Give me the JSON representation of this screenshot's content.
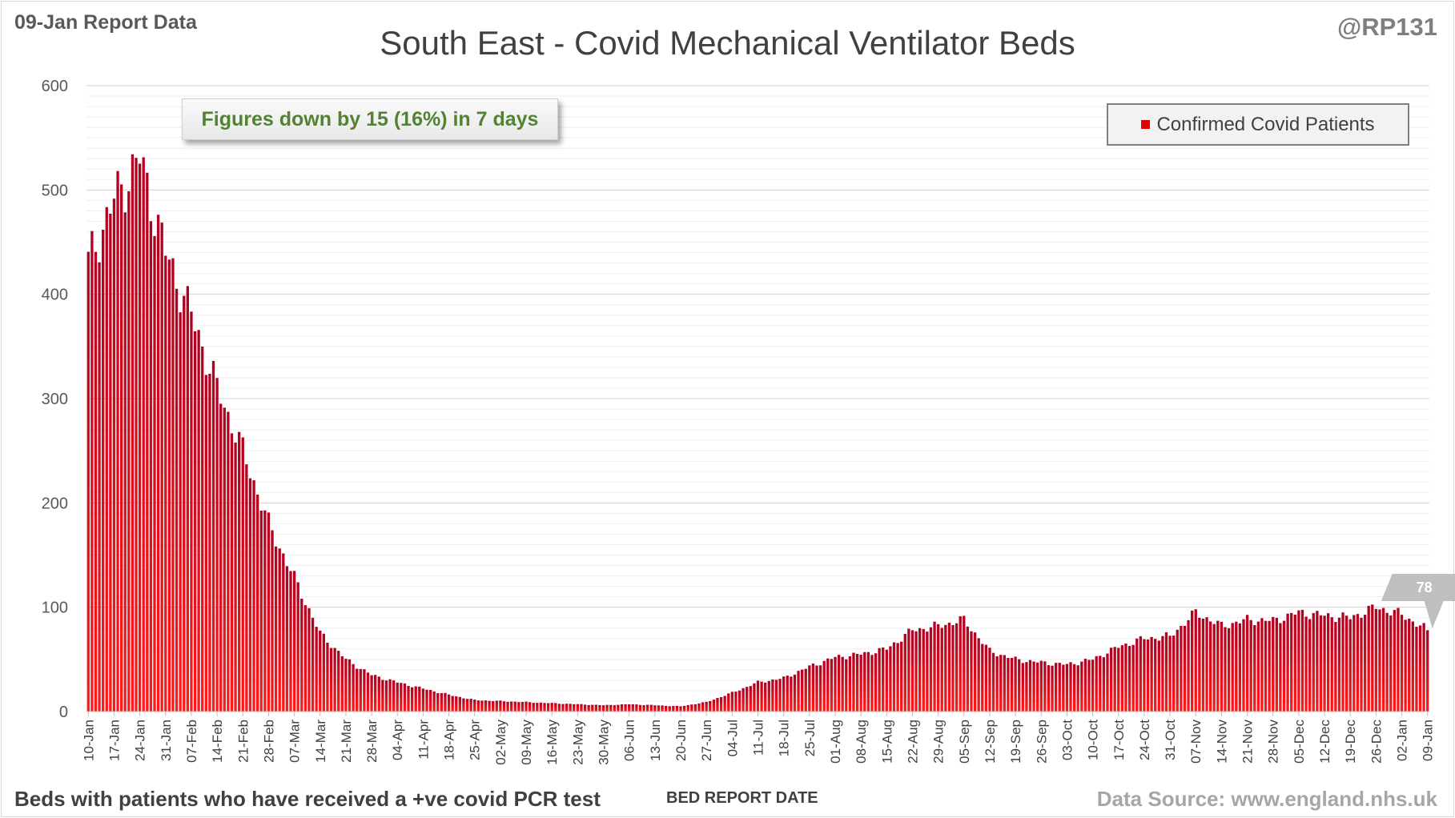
{
  "report_tag": "09-Jan Report Data",
  "handle": "@RP131",
  "footer_note": "Beds with patients who have received a +ve covid PCR test",
  "source": "Data Source: www.england.nhs.uk",
  "callout": "Figures down by 15 (16%) in 7 days",
  "colors": {
    "bar_top": "#b00020",
    "bar_bottom": "#ff1a1a",
    "marker": "#bfbfbf"
  },
  "chart_data": {
    "type": "bar",
    "title": "South East - Covid Mechanical Ventilator Beds",
    "xlabel": "BED REPORT DATE",
    "ylabel": "",
    "ylim": [
      0,
      600
    ],
    "yticks": [
      0,
      100,
      200,
      300,
      400,
      500,
      600
    ],
    "grid": true,
    "legend_position": "top-right",
    "x_start": "10-Jan",
    "x_end": "09-Jan",
    "x_tick_every_days": 7,
    "tick_labels": [
      "10-Jan",
      "17-Jan",
      "24-Jan",
      "31-Jan",
      "07-Feb",
      "14-Feb",
      "21-Feb",
      "28-Feb",
      "07-Mar",
      "14-Mar",
      "21-Mar",
      "28-Mar",
      "04-Apr",
      "11-Apr",
      "18-Apr",
      "25-Apr",
      "02-May",
      "09-May",
      "16-May",
      "23-May",
      "30-May",
      "06-Jun",
      "13-Jun",
      "20-Jun",
      "27-Jun",
      "04-Jul",
      "11-Jul",
      "18-Jul",
      "25-Jul",
      "01-Aug",
      "08-Aug",
      "15-Aug",
      "22-Aug",
      "29-Aug",
      "05-Sep",
      "12-Sep",
      "19-Sep",
      "26-Sep",
      "03-Oct",
      "10-Oct",
      "17-Oct",
      "24-Oct",
      "31-Oct",
      "07-Nov",
      "14-Nov",
      "21-Nov",
      "28-Nov",
      "05-Dec",
      "12-Dec",
      "19-Dec",
      "26-Dec",
      "02-Jan",
      "09-Jan"
    ],
    "anchor_values": [
      430,
      490,
      530,
      440,
      380,
      310,
      250,
      180,
      128,
      75,
      50,
      35,
      28,
      22,
      16,
      11,
      10,
      9,
      8,
      7,
      6,
      7,
      6,
      5,
      9,
      18,
      28,
      32,
      43,
      52,
      55,
      60,
      78,
      82,
      88,
      58,
      50,
      47,
      45,
      50,
      62,
      70,
      72,
      95,
      82,
      88,
      87,
      95,
      92,
      90,
      100,
      93,
      78
    ],
    "series": [
      {
        "name": "Confirmed Covid Patients",
        "last_value": 78,
        "last_value_label": "78"
      }
    ]
  }
}
